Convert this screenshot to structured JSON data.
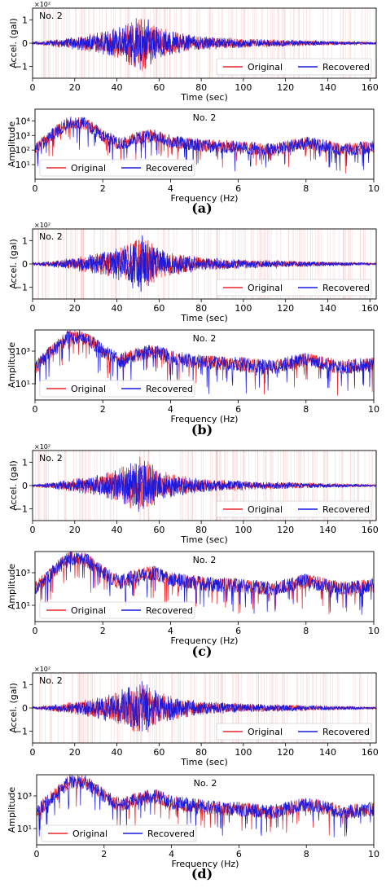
{
  "colors": {
    "original": "#e8262b",
    "recovered": "#1a1adf",
    "missing_lines": "#f3b8b8"
  },
  "panels": [
    {
      "caption": "(a)"
    },
    {
      "caption": "(b)"
    },
    {
      "caption": "(c)"
    },
    {
      "caption": "(d)"
    }
  ],
  "chart_data": [
    {
      "type": "line",
      "panel": "a",
      "subtitle": "No. 2",
      "multiplier": "×10²",
      "xlabel": "Time (sec)",
      "ylabel": "Accel. (gal)",
      "xlim": [
        0,
        163
      ],
      "ylim": [
        -1.5,
        1.5
      ],
      "xticks": [
        0,
        20,
        40,
        60,
        80,
        100,
        120,
        140,
        160
      ],
      "yticks": [
        -1,
        0,
        1
      ],
      "legend": "lower-right",
      "series": [
        {
          "name": "Original",
          "envelope_x": [
            0,
            10,
            20,
            30,
            40,
            48,
            52,
            56,
            60,
            70,
            80,
            100,
            120,
            140,
            163
          ],
          "envelope_y": [
            0.05,
            0.15,
            0.3,
            0.45,
            0.7,
            1.1,
            1.3,
            1.0,
            0.7,
            0.45,
            0.3,
            0.2,
            0.15,
            0.1,
            0.05
          ]
        },
        {
          "name": "Recovered",
          "envelope_x": [
            0,
            10,
            20,
            30,
            40,
            48,
            52,
            56,
            60,
            70,
            80,
            100,
            120,
            140,
            163
          ],
          "envelope_y": [
            0.05,
            0.15,
            0.3,
            0.45,
            0.7,
            1.1,
            1.3,
            1.0,
            0.7,
            0.45,
            0.3,
            0.2,
            0.15,
            0.1,
            0.05
          ]
        }
      ]
    },
    {
      "type": "line",
      "panel": "a",
      "subtitle": "No. 2",
      "xlabel": "Frequency (Hz)",
      "ylabel": "Amplitude",
      "xlim": [
        0,
        10
      ],
      "ylim_log10": [
        0,
        4.8
      ],
      "yscale": "log",
      "xticks": [
        0,
        2,
        4,
        6,
        8,
        10
      ],
      "yticks": [
        "10¹",
        "10²",
        "10³",
        "10⁴"
      ],
      "legend": "lower-left",
      "series": [
        {
          "name": "Original",
          "freq_hz": [
            0,
            0.5,
            1,
            1.5,
            2,
            2.5,
            3,
            3.5,
            4,
            5,
            6,
            7,
            8,
            8.5,
            9,
            10
          ],
          "log10_amplitude": [
            2.0,
            3.0,
            3.9,
            3.8,
            3.0,
            2.4,
            2.8,
            3.0,
            2.6,
            2.3,
            2.2,
            2.0,
            2.5,
            2.3,
            2.0,
            2.2
          ]
        },
        {
          "name": "Recovered",
          "freq_hz": [
            0,
            0.5,
            1,
            1.5,
            2,
            2.5,
            3,
            3.5,
            4,
            5,
            6,
            7,
            8,
            8.5,
            9,
            10
          ],
          "log10_amplitude": [
            2.0,
            3.0,
            3.9,
            3.8,
            3.0,
            2.4,
            2.8,
            3.0,
            2.6,
            2.3,
            2.2,
            2.0,
            2.5,
            2.3,
            2.0,
            2.2
          ]
        }
      ]
    },
    {
      "type": "line",
      "panel": "b",
      "subtitle": "No. 2",
      "multiplier": "×10²",
      "xlabel": "Time (sec)",
      "ylabel": "Accel. (gal)",
      "xlim": [
        0,
        163
      ],
      "ylim": [
        -1.5,
        1.5
      ],
      "xticks": [
        0,
        20,
        40,
        60,
        80,
        100,
        120,
        140,
        160
      ],
      "yticks": [
        -1,
        0,
        1
      ],
      "legend": "lower-right",
      "series": [
        {
          "name": "Original",
          "envelope_x": [
            0,
            10,
            20,
            30,
            40,
            48,
            52,
            56,
            60,
            70,
            80,
            100,
            120,
            140,
            163
          ],
          "envelope_y": [
            0.05,
            0.15,
            0.3,
            0.45,
            0.7,
            1.1,
            1.3,
            1.0,
            0.7,
            0.45,
            0.3,
            0.2,
            0.15,
            0.1,
            0.05
          ]
        },
        {
          "name": "Recovered",
          "envelope_x": [
            0,
            10,
            20,
            30,
            40,
            48,
            52,
            56,
            60,
            70,
            80,
            100,
            120,
            140,
            163
          ],
          "envelope_y": [
            0.05,
            0.15,
            0.3,
            0.45,
            0.7,
            1.1,
            1.3,
            1.0,
            0.7,
            0.45,
            0.3,
            0.2,
            0.15,
            0.1,
            0.05
          ]
        }
      ]
    },
    {
      "type": "line",
      "panel": "b",
      "subtitle": "No. 2",
      "xlabel": "Frequency (Hz)",
      "ylabel": "Amplitude",
      "xlim": [
        0,
        10
      ],
      "ylim_log10": [
        0,
        4.3
      ],
      "yscale": "log",
      "xticks": [
        0,
        2,
        4,
        6,
        8,
        10
      ],
      "yticks": [
        "10¹",
        "10³"
      ],
      "legend": "lower-left",
      "series": [
        {
          "name": "Original",
          "freq_hz": [
            0,
            0.5,
            1,
            1.5,
            2,
            2.5,
            3,
            3.5,
            4,
            5,
            6,
            7,
            8,
            8.5,
            9,
            10
          ],
          "log10_amplitude": [
            2.0,
            3.0,
            3.9,
            3.8,
            3.0,
            2.4,
            2.8,
            3.0,
            2.6,
            2.3,
            2.2,
            2.0,
            2.5,
            2.3,
            2.0,
            2.2
          ]
        },
        {
          "name": "Recovered",
          "freq_hz": [
            0,
            0.5,
            1,
            1.5,
            2,
            2.5,
            3,
            3.5,
            4,
            5,
            6,
            7,
            8,
            8.5,
            9,
            10
          ],
          "log10_amplitude": [
            2.0,
            3.0,
            3.9,
            3.8,
            3.0,
            2.4,
            2.8,
            3.0,
            2.6,
            2.3,
            2.2,
            2.0,
            2.5,
            2.3,
            2.0,
            2.2
          ]
        }
      ]
    },
    {
      "type": "line",
      "panel": "c",
      "subtitle": "No. 2",
      "multiplier": "×10²",
      "xlabel": "Time (sec)",
      "ylabel": "Accel. (gal)",
      "xlim": [
        0,
        163
      ],
      "ylim": [
        -1.5,
        1.5
      ],
      "xticks": [
        0,
        20,
        40,
        60,
        80,
        100,
        120,
        140,
        160
      ],
      "yticks": [
        -1,
        0,
        1
      ],
      "legend": "lower-right",
      "series": [
        {
          "name": "Original",
          "envelope_x": [
            0,
            10,
            20,
            30,
            40,
            48,
            52,
            56,
            60,
            70,
            80,
            100,
            120,
            140,
            163
          ],
          "envelope_y": [
            0.05,
            0.15,
            0.3,
            0.45,
            0.7,
            1.1,
            1.3,
            1.0,
            0.7,
            0.45,
            0.3,
            0.2,
            0.15,
            0.1,
            0.05
          ]
        },
        {
          "name": "Recovered",
          "envelope_x": [
            0,
            10,
            20,
            30,
            40,
            48,
            52,
            56,
            60,
            70,
            80,
            100,
            120,
            140,
            163
          ],
          "envelope_y": [
            0.05,
            0.15,
            0.3,
            0.45,
            0.7,
            1.1,
            1.3,
            1.0,
            0.7,
            0.45,
            0.3,
            0.2,
            0.15,
            0.1,
            0.05
          ]
        }
      ]
    },
    {
      "type": "line",
      "panel": "c",
      "subtitle": "No. 2",
      "xlabel": "Frequency (Hz)",
      "ylabel": "Amplitude",
      "xlim": [
        0,
        10
      ],
      "ylim_log10": [
        0,
        4.3
      ],
      "yscale": "log",
      "xticks": [
        0,
        2,
        4,
        6,
        8,
        10
      ],
      "yticks": [
        "10¹",
        "10³"
      ],
      "legend": "lower-left",
      "series": [
        {
          "name": "Original",
          "freq_hz": [
            0,
            0.5,
            1,
            1.5,
            2,
            2.5,
            3,
            3.5,
            4,
            5,
            6,
            7,
            8,
            8.5,
            9,
            10
          ],
          "log10_amplitude": [
            2.0,
            3.0,
            3.9,
            3.8,
            3.0,
            2.4,
            2.8,
            3.0,
            2.6,
            2.3,
            2.2,
            2.0,
            2.5,
            2.3,
            2.0,
            2.2
          ]
        },
        {
          "name": "Recovered",
          "freq_hz": [
            0,
            0.5,
            1,
            1.5,
            2,
            2.5,
            3,
            3.5,
            4,
            5,
            6,
            7,
            8,
            8.5,
            9,
            10
          ],
          "log10_amplitude": [
            2.0,
            3.0,
            3.9,
            3.8,
            3.0,
            2.4,
            2.8,
            3.0,
            2.6,
            2.3,
            2.2,
            2.0,
            2.5,
            2.3,
            2.0,
            2.2
          ]
        }
      ]
    },
    {
      "type": "line",
      "panel": "d",
      "subtitle": "No. 2",
      "multiplier": "×10²",
      "xlabel": "Time (sec)",
      "ylabel": "Accel. (gal)",
      "xlim": [
        0,
        163
      ],
      "ylim": [
        -1.5,
        1.5
      ],
      "xticks": [
        0,
        20,
        40,
        60,
        80,
        100,
        120,
        140,
        160
      ],
      "yticks": [
        -1,
        0,
        1
      ],
      "legend": "lower-right",
      "series": [
        {
          "name": "Original",
          "envelope_x": [
            0,
            10,
            20,
            30,
            40,
            48,
            52,
            56,
            60,
            70,
            80,
            100,
            120,
            140,
            163
          ],
          "envelope_y": [
            0.05,
            0.15,
            0.3,
            0.45,
            0.7,
            1.1,
            1.3,
            1.0,
            0.7,
            0.45,
            0.3,
            0.2,
            0.15,
            0.1,
            0.05
          ]
        },
        {
          "name": "Recovered",
          "envelope_x": [
            0,
            10,
            20,
            30,
            40,
            48,
            52,
            56,
            60,
            70,
            80,
            100,
            120,
            140,
            163
          ],
          "envelope_y": [
            0.05,
            0.15,
            0.3,
            0.45,
            0.7,
            1.1,
            1.3,
            1.0,
            0.7,
            0.45,
            0.3,
            0.2,
            0.15,
            0.1,
            0.05
          ]
        }
      ]
    },
    {
      "type": "line",
      "panel": "d",
      "subtitle": "No. 2",
      "xlabel": "Frequency (Hz)",
      "ylabel": "Amplitude",
      "xlim": [
        0,
        10
      ],
      "ylim_log10": [
        0,
        4.3
      ],
      "yscale": "log",
      "xticks": [
        0,
        2,
        4,
        6,
        8,
        10
      ],
      "yticks": [
        "10¹",
        "10³"
      ],
      "legend": "lower-left",
      "series": [
        {
          "name": "Original",
          "freq_hz": [
            0,
            0.5,
            1,
            1.5,
            2,
            2.5,
            3,
            3.5,
            4,
            5,
            6,
            7,
            8,
            8.5,
            9,
            10
          ],
          "log10_amplitude": [
            2.0,
            3.0,
            3.9,
            3.8,
            3.0,
            2.4,
            2.8,
            3.0,
            2.6,
            2.3,
            2.2,
            2.0,
            2.5,
            2.3,
            2.0,
            2.2
          ]
        },
        {
          "name": "Recovered",
          "freq_hz": [
            0,
            0.5,
            1,
            1.5,
            2,
            2.5,
            3,
            3.5,
            4,
            5,
            6,
            7,
            8,
            8.5,
            9,
            10
          ],
          "log10_amplitude": [
            2.0,
            3.0,
            3.9,
            3.8,
            3.0,
            2.4,
            2.8,
            3.0,
            2.6,
            2.3,
            2.2,
            2.0,
            2.5,
            2.3,
            2.0,
            2.2
          ]
        }
      ]
    }
  ]
}
